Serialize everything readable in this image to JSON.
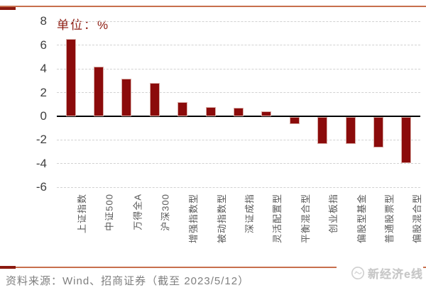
{
  "page": {
    "unit_label": "单位：%",
    "source_text": "资料来源：Wind、招商证券（截至 2023/5/12）",
    "watermark_text": "新经济e线"
  },
  "chart_data": {
    "type": "bar",
    "title": "",
    "unit_note": "单位：%",
    "categories": [
      "上证指数",
      "中证500",
      "万得全A",
      "沪深300",
      "增强指数型",
      "被动指数型",
      "深证成指",
      "灵活配置型",
      "平衡混合型",
      "创业板指",
      "偏股型基金",
      "普通股票型",
      "偏股混合型"
    ],
    "values": [
      6.5,
      4.2,
      3.2,
      2.8,
      1.2,
      0.8,
      0.7,
      0.4,
      -0.6,
      -2.3,
      -2.3,
      -2.6,
      -3.9
    ],
    "ylim": [
      -6,
      8
    ],
    "yticks": [
      8,
      6,
      4,
      2,
      0,
      -2,
      -4,
      -6
    ],
    "grid": true,
    "legend": "none",
    "bar_color": "#8B0B0B",
    "gridline_color": "#D2D2D2",
    "axis_color": "#000000",
    "divider_color": "#C76F4D",
    "divider_stub_color": "#8B1A10",
    "unit_label_color": "#8C1A0F",
    "source_text_color": "#7F7F7F",
    "watermark_color": "#C6C6C6"
  }
}
